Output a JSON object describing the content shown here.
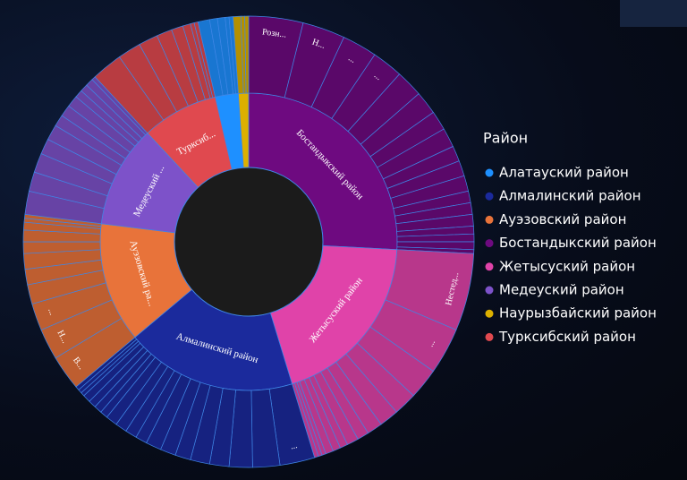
{
  "chart_data": {
    "type": "sunburst",
    "legend_title": "Район",
    "legend": "right",
    "series": [
      {
        "name": "Алатауский район",
        "color": "#1e90ff",
        "value": 9,
        "children": [
          {
            "value": 3
          },
          {
            "value": 2
          },
          {
            "value": 2
          },
          {
            "value": 1
          },
          {
            "value": 1
          }
        ]
      },
      {
        "name": "Алмалинский район",
        "color": "#1b2a9c",
        "value": 67,
        "label": "Алмалинский район",
        "children": [
          {
            "label": "...",
            "value": 9
          },
          {
            "value": 7
          },
          {
            "value": 6
          },
          {
            "value": 5
          },
          {
            "value": 5
          },
          {
            "value": 4
          },
          {
            "value": 4
          },
          {
            "value": 4
          },
          {
            "value": 3
          },
          {
            "value": 3
          },
          {
            "value": 3
          },
          {
            "value": 3
          },
          {
            "value": 2
          },
          {
            "value": 2
          },
          {
            "value": 2
          },
          {
            "value": 2
          },
          {
            "value": 1
          },
          {
            "value": 1
          },
          {
            "value": 1
          }
        ]
      },
      {
        "name": "Ауэзовский район",
        "color": "#e8733a",
        "value": 47,
        "label": "Ауэзовский ра...",
        "children": [
          {
            "label": "В...",
            "value": 9
          },
          {
            "label": "Н...",
            "value": 8
          },
          {
            "label": "...",
            "value": 7
          },
          {
            "value": 5
          },
          {
            "value": 4
          },
          {
            "value": 4
          },
          {
            "value": 3
          },
          {
            "value": 3
          },
          {
            "value": 2
          },
          {
            "value": 1
          },
          {
            "value": 1
          }
        ]
      },
      {
        "name": "Бостандыкский район",
        "color": "#6e0a80",
        "value": 93,
        "label": "Бостандыкский район",
        "children": [
          {
            "label": "Розн...",
            "value": 14
          },
          {
            "label": "Н...",
            "value": 11
          },
          {
            "label": "...",
            "value": 9
          },
          {
            "label": "...",
            "value": 8
          },
          {
            "value": 7
          },
          {
            "value": 6
          },
          {
            "value": 5
          },
          {
            "value": 5
          },
          {
            "value": 4
          },
          {
            "value": 4
          },
          {
            "value": 4
          },
          {
            "value": 3
          },
          {
            "value": 3
          },
          {
            "value": 3
          },
          {
            "value": 2
          },
          {
            "value": 2
          },
          {
            "value": 2
          },
          {
            "value": 1
          }
        ]
      },
      {
        "name": "Жетысуский район",
        "color": "#e043a9",
        "value": 70,
        "label": "Жетысуский район",
        "children": [
          {
            "label": "Нестед...",
            "value": 20
          },
          {
            "label": "...",
            "value": 12
          },
          {
            "value": 8
          },
          {
            "value": 6
          },
          {
            "value": 5
          },
          {
            "value": 4
          },
          {
            "value": 3
          },
          {
            "value": 3
          },
          {
            "value": 2
          },
          {
            "value": 2
          },
          {
            "value": 2
          },
          {
            "value": 1
          },
          {
            "value": 1
          },
          {
            "value": 1
          }
        ]
      },
      {
        "name": "Медеуский район",
        "color": "#7d52c9",
        "value": 40,
        "label": "Медеуский ...",
        "children": [
          {
            "value": 6
          },
          {
            "value": 5
          },
          {
            "value": 5
          },
          {
            "value": 4
          },
          {
            "value": 4
          },
          {
            "value": 3
          },
          {
            "value": 3
          },
          {
            "value": 3
          },
          {
            "value": 2
          },
          {
            "value": 2
          },
          {
            "value": 2
          },
          {
            "value": 1
          }
        ]
      },
      {
        "name": "Наурызбайский район",
        "color": "#dcb000",
        "value": 4,
        "children": [
          {
            "value": 2
          },
          {
            "value": 1
          },
          {
            "value": 1
          }
        ]
      },
      {
        "name": "Турксибский район",
        "color": "#e0494f",
        "value": 30,
        "label": "Турксиб...",
        "children": [
          {
            "value": 8
          },
          {
            "value": 6
          },
          {
            "value": 5
          },
          {
            "value": 4
          },
          {
            "value": 3
          },
          {
            "value": 2
          },
          {
            "value": 1
          },
          {
            "value": 1
          }
        ]
      }
    ]
  }
}
